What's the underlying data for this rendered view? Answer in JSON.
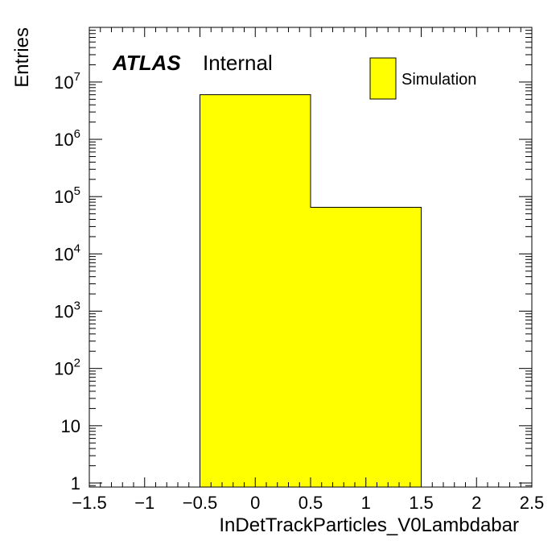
{
  "chart_data": {
    "type": "bar",
    "subtype": "histogram",
    "xlabel": "InDetTrackParticles_V0Lambdabar",
    "ylabel": "Entries",
    "xlim": [
      -1.5,
      2.5
    ],
    "ylim": [
      0.85,
      90000000
    ],
    "yscale": "log",
    "grid": false,
    "bins": [
      {
        "x_low": -0.5,
        "x_high": 0.5,
        "value": 6000000
      },
      {
        "x_low": 0.5,
        "x_high": 1.5,
        "value": 65000
      }
    ],
    "x_ticks": [
      {
        "value": -1.5,
        "label": "−1.5"
      },
      {
        "value": -1,
        "label": "−1"
      },
      {
        "value": -0.5,
        "label": "−0.5"
      },
      {
        "value": 0,
        "label": "0"
      },
      {
        "value": 0.5,
        "label": "0.5"
      },
      {
        "value": 1,
        "label": "1"
      },
      {
        "value": 1.5,
        "label": "1.5"
      },
      {
        "value": 2,
        "label": "2"
      },
      {
        "value": 2.5,
        "label": "2.5"
      }
    ],
    "y_ticks": [
      {
        "value": 1,
        "base": "1",
        "exp": ""
      },
      {
        "value": 10,
        "base": "10",
        "exp": ""
      },
      {
        "value": 100,
        "base": "10",
        "exp": "2"
      },
      {
        "value": 1000,
        "base": "10",
        "exp": "3"
      },
      {
        "value": 10000,
        "base": "10",
        "exp": "4"
      },
      {
        "value": 100000,
        "base": "10",
        "exp": "5"
      },
      {
        "value": 1000000,
        "base": "10",
        "exp": "6"
      },
      {
        "value": 10000000,
        "base": "10",
        "exp": "7"
      }
    ],
    "legend": {
      "placement": "top-right",
      "entries": [
        {
          "label": "Simulation",
          "color": "#ffff00"
        }
      ]
    },
    "annotation": {
      "atlas": "ATLAS",
      "status": "Internal"
    },
    "colors": {
      "fill": "#ffff00",
      "line": "#000000"
    }
  }
}
